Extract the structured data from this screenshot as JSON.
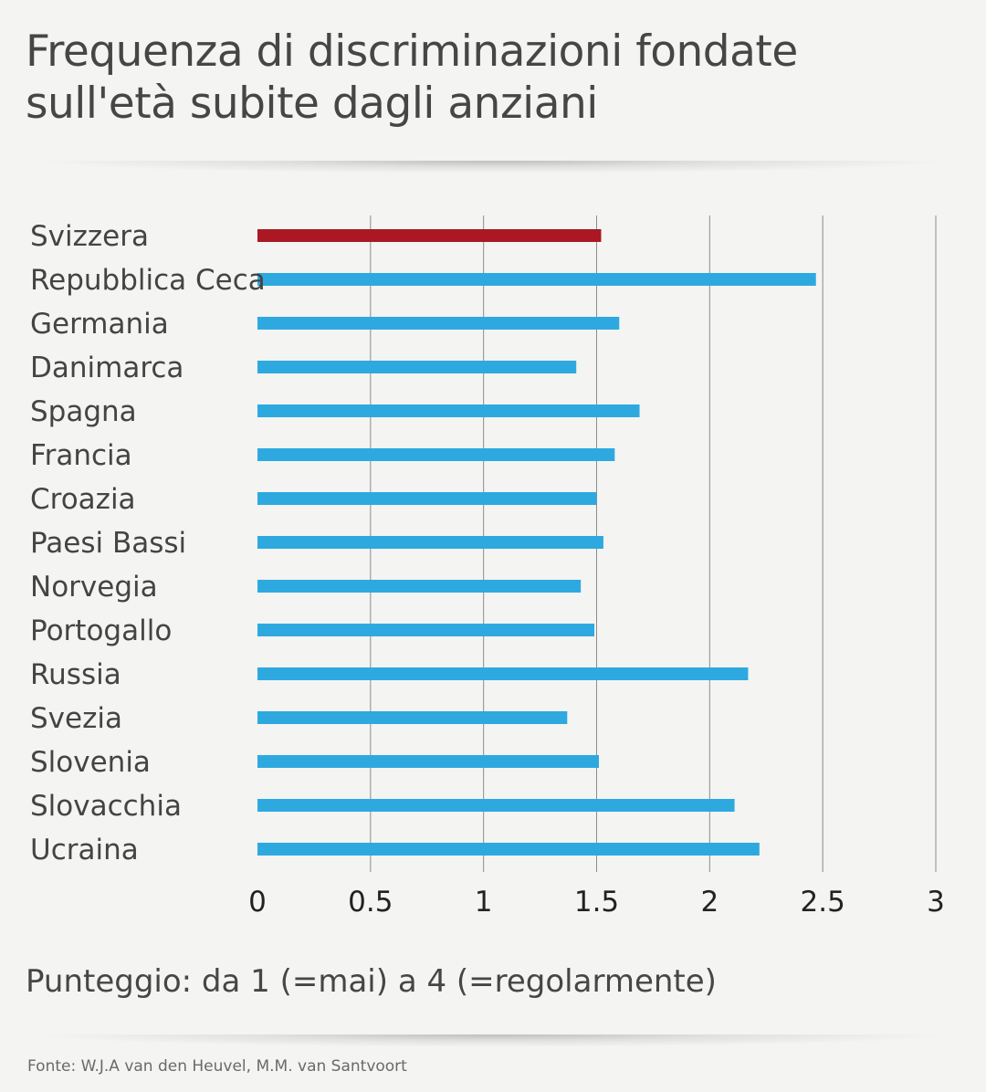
{
  "title": "Frequenza di discriminazioni fondate sull'età subite dagli anziani",
  "subtitle": "Punteggio: da 1 (=mai) a 4 (=regolarmente)",
  "source": "Fonte: W.J.A van den Heuvel, M.M. van Santvoort",
  "colors": {
    "highlight": "#ab1823",
    "bar": "#2ea9e0",
    "grid": "#8c8c8c"
  },
  "chart_data": {
    "type": "bar",
    "orientation": "horizontal",
    "title": "Frequenza di discriminazioni fondate sull'età subite dagli anziani",
    "xlabel": "",
    "ylabel": "",
    "xlim": [
      0,
      3
    ],
    "grid": true,
    "x_ticks": [
      "0",
      "0.5",
      "1",
      "1.5",
      "2",
      "2.5",
      "3"
    ],
    "x_tick_values": [
      0,
      0.5,
      1,
      1.5,
      2,
      2.5,
      3
    ],
    "categories": [
      "Svizzera",
      "Repubblica Ceca",
      "Germania",
      "Danimarca",
      "Spagna",
      "Francia",
      "Croazia",
      "Paesi Bassi",
      "Norvegia",
      "Portogallo",
      "Russia",
      "Svezia",
      "Slovenia",
      "Slovacchia",
      "Ucraina"
    ],
    "values": [
      1.52,
      2.47,
      1.6,
      1.41,
      1.69,
      1.58,
      1.5,
      1.53,
      1.43,
      1.49,
      2.17,
      1.37,
      1.51,
      2.11,
      2.22
    ],
    "highlight_category": "Svizzera"
  }
}
